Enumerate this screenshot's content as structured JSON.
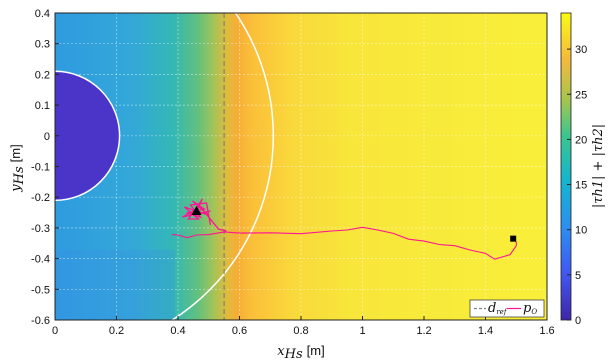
{
  "chart_data": {
    "type": "heatmap",
    "xlabel_main": "x",
    "xlabel_sub": "Hs",
    "xlabel_unit": "[m]",
    "ylabel_main": "y",
    "ylabel_sub": "Hs",
    "ylabel_unit": "[m]",
    "colorbar_label": "|τh1| + |τh2|",
    "xlim": [
      0,
      1.6
    ],
    "ylim": [
      -0.6,
      0.4
    ],
    "x_ticks": [
      "0",
      "0.2",
      "0.4",
      "0.6",
      "0.8",
      "1",
      "1.2",
      "1.4",
      "1.6"
    ],
    "y_ticks": [
      "0.4",
      "0.3",
      "0.2",
      "0.1",
      "0",
      "-0.1",
      "-0.2",
      "-0.3",
      "-0.4",
      "-0.5",
      "-0.6"
    ],
    "colorbar_range": [
      0,
      34
    ],
    "colorbar_ticks": [
      "0",
      "5",
      "10",
      "15",
      "20",
      "25",
      "30"
    ],
    "grid": true,
    "inner_circle": {
      "center": [
        0,
        0
      ],
      "radius": 0.21
    },
    "outer_circle": {
      "center": [
        0,
        0
      ],
      "radius": 0.71
    },
    "d_ref_x": 0.55,
    "series": [
      {
        "name": "d_ref",
        "style": "dashed",
        "color": "#808080"
      },
      {
        "name": "p_O",
        "style": "solid",
        "color": "#ff1493",
        "x": [
          0.38,
          0.4,
          0.43,
          0.46,
          0.5,
          0.55,
          0.6,
          0.7,
          0.8,
          0.9,
          0.95,
          1.0,
          1.05,
          1.1,
          1.15,
          1.2,
          1.25,
          1.3,
          1.35,
          1.4,
          1.43,
          1.46,
          1.48,
          1.5,
          1.5,
          1.49
        ],
        "y": [
          -0.32,
          -0.325,
          -0.33,
          -0.325,
          -0.32,
          -0.315,
          -0.315,
          -0.318,
          -0.317,
          -0.312,
          -0.305,
          -0.3,
          -0.305,
          -0.32,
          -0.335,
          -0.345,
          -0.352,
          -0.36,
          -0.37,
          -0.385,
          -0.4,
          -0.395,
          -0.385,
          -0.36,
          -0.345,
          -0.335
        ]
      }
    ],
    "start_marker": {
      "shape": "square",
      "x": 1.49,
      "y": -0.335
    },
    "end_marker": {
      "shape": "triangle",
      "x": 0.46,
      "y": -0.245
    },
    "legend": {
      "position": "bottom-right",
      "entries": [
        "d_ref",
        "p_O"
      ]
    }
  }
}
